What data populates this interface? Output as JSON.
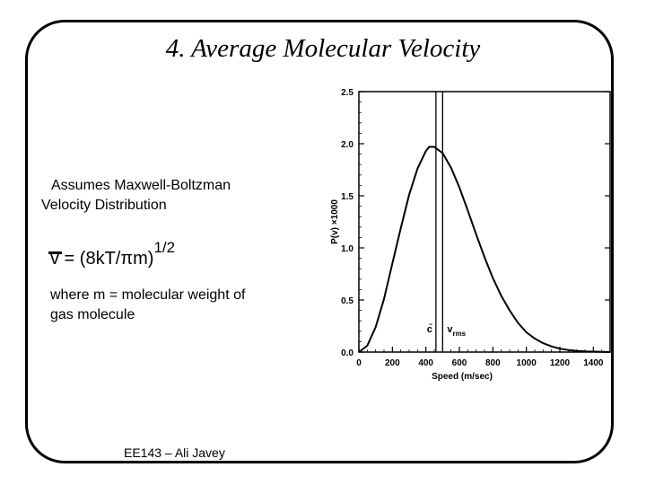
{
  "slide": {
    "title": "4. Average Molecular Velocity",
    "assumes_line1": "Assumes Maxwell-Boltzman",
    "assumes_line2": "Velocity Distribution",
    "formula": {
      "lhs": "v",
      "middle": " = (8kT/πm)",
      "exponent": "1/2"
    },
    "where_line1": "where m = molecular weight of",
    "where_line2": "gas molecule",
    "footer": "EE143 – Ali Javey"
  },
  "chart_data": {
    "type": "line",
    "xlabel": "Speed (m/sec)",
    "ylabel": "P(v) ×1000",
    "xlim": [
      0,
      1500
    ],
    "ylim": [
      0,
      2.5
    ],
    "x_ticks": [
      "0",
      "200",
      "400",
      "600",
      "800",
      "1000",
      "1200",
      "1400"
    ],
    "y_ticks": [
      "0.0",
      "0.5",
      "1.0",
      "1.5",
      "2.0",
      "2.5"
    ],
    "series": [
      {
        "x": [
          0,
          50,
          100,
          150,
          200,
          250,
          300,
          350,
          400,
          420,
          450,
          500,
          550,
          600,
          650,
          700,
          750,
          800,
          850,
          900,
          950,
          1000,
          1050,
          1100,
          1150,
          1200,
          1250,
          1300,
          1350,
          1400,
          1450,
          1500
        ],
        "y": [
          0.0,
          0.06,
          0.24,
          0.51,
          0.85,
          1.19,
          1.51,
          1.76,
          1.93,
          1.97,
          1.97,
          1.91,
          1.77,
          1.58,
          1.36,
          1.13,
          0.91,
          0.71,
          0.54,
          0.4,
          0.28,
          0.19,
          0.13,
          0.085,
          0.054,
          0.033,
          0.02,
          0.012,
          0.007,
          0.004,
          0.002,
          0.001
        ]
      }
    ],
    "markers": [
      {
        "label": "c̄",
        "x": 460
      },
      {
        "label": "v",
        "subscript": "rms",
        "x": 500
      }
    ],
    "grid": false,
    "legend": "none"
  }
}
